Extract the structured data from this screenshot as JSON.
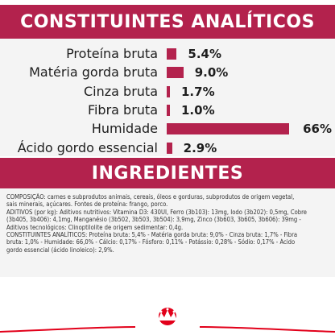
{
  "colors": {
    "banner_bg": "#b3224d",
    "banner_text": "#ffffff",
    "bar": "#b3224d",
    "brand_red": "#e2001a"
  },
  "analytic": {
    "title": "CONSTITUINTES ANALÍTICOS",
    "items": [
      {
        "label": "Proteína bruta",
        "value_text": "5.4%",
        "percent": 5.4
      },
      {
        "label": "Matéria gorda bruta",
        "value_text": "9.0%",
        "percent": 9.0
      },
      {
        "label": "Cinza bruta",
        "value_text": "1.7%",
        "percent": 1.7
      },
      {
        "label": "Fibra bruta",
        "value_text": "1.0%",
        "percent": 1.0
      },
      {
        "label": "Humidade",
        "value_text": "66%",
        "percent": 66
      },
      {
        "label": "Ácido gordo essencial",
        "value_text": "2.9%",
        "percent": 2.9
      }
    ]
  },
  "ingredients": {
    "title": "INGREDIENTES",
    "lines": [
      "COMPOSIÇÃO: carnes e subprodutos animais, cereais, óleos e gorduras, subprodutos de origem vegetal,",
      "sais minerais, açúcares. Fontes de proteína: frango, porco.",
      "ADITIVOS (por kg): Aditivos nutritivos: Vitamina D3: 430UI, Ferro (3b103): 13mg, Iodo (3b202): 0,5mg, Cobre",
      "(3b405, 3b406): 4,1mg, Manganésio (3b502, 3b503, 3b504): 3,9mg, Zinco (3b603, 3b605, 3b606): 39mg -",
      "Aditivos tecnológicos: Clinoptilolite de origem sedimentar: 0,4g.",
      "CONSTITUINTES ANALÍTICOS: Proteína bruta: 5,4% - Matéria gorda bruta: 9,0% - Cinza bruta: 1,7% - Fibra",
      "bruta: 1,0% - Humidade: 66,0% - Cálcio: 0,17% - Fósforo: 0,11% - Potássio: 0,28% - Sódio: 0,17% - Ácido",
      "gordo essencial (ácido linoleico): 2,9%."
    ]
  },
  "brand": {
    "name": "ROYAL CANIN",
    "logo_icon": "crown-logo-icon"
  }
}
